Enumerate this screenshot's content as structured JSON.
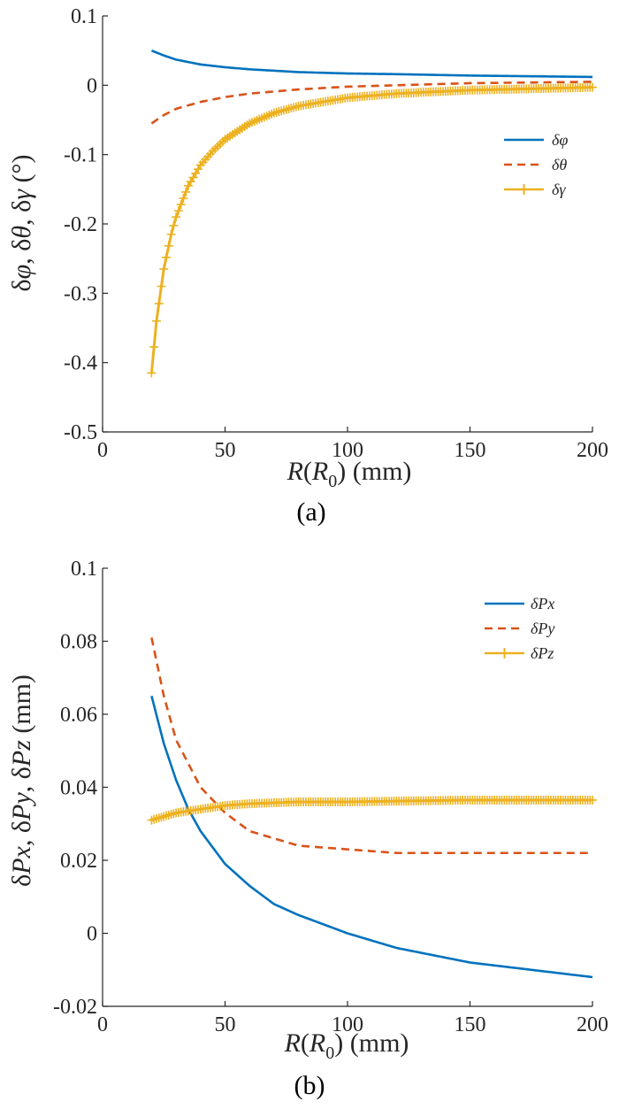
{
  "chart_data": [
    {
      "type": "line",
      "panel_label": "(a)",
      "ylabel": "δφ, δθ, δγ (°)",
      "xlabel": "R(R0) (mm)",
      "xlim": [
        0,
        200
      ],
      "ylim": [
        -0.5,
        0.1
      ],
      "x_ticks": [
        0,
        50,
        100,
        150,
        200
      ],
      "x_tick_labels": [
        "0",
        "50",
        "100",
        "150",
        "200"
      ],
      "y_ticks": [
        0.1,
        0,
        -0.1,
        -0.2,
        -0.3,
        -0.4,
        -0.5
      ],
      "y_tick_labels": [
        "0.1",
        "0",
        "-0.1",
        "-0.2",
        "-0.3",
        "-0.4",
        "-0.5"
      ],
      "grid": false,
      "legend_position": "right",
      "series": [
        {
          "name": "δφ",
          "color": "#0072BD",
          "style": "solid",
          "x": [
            20,
            25,
            30,
            40,
            50,
            60,
            80,
            100,
            120,
            150,
            200
          ],
          "y": [
            0.05,
            0.043,
            0.037,
            0.03,
            0.026,
            0.023,
            0.019,
            0.017,
            0.016,
            0.014,
            0.012
          ]
        },
        {
          "name": "δθ",
          "color": "#D95319",
          "style": "dashed",
          "x": [
            20,
            25,
            30,
            40,
            50,
            60,
            80,
            100,
            120,
            150,
            200
          ],
          "y": [
            -0.055,
            -0.043,
            -0.034,
            -0.024,
            -0.017,
            -0.012,
            -0.006,
            -0.002,
            0.0,
            0.003,
            0.005
          ]
        },
        {
          "name": "δγ",
          "color": "#EDB120",
          "style": "solid-marker",
          "x": [
            20,
            22,
            25,
            28,
            30,
            35,
            40,
            45,
            50,
            60,
            70,
            80,
            100,
            120,
            150,
            200
          ],
          "y": [
            -0.415,
            -0.34,
            -0.265,
            -0.215,
            -0.19,
            -0.145,
            -0.115,
            -0.095,
            -0.078,
            -0.055,
            -0.04,
            -0.03,
            -0.018,
            -0.012,
            -0.007,
            -0.003
          ]
        }
      ]
    },
    {
      "type": "line",
      "panel_label": "(b)",
      "ylabel": "δPx, δPy, δPz (mm)",
      "xlabel": "R(R0) (mm)",
      "xlim": [
        0,
        200
      ],
      "ylim": [
        -0.02,
        0.1
      ],
      "x_ticks": [
        0,
        50,
        100,
        150,
        200
      ],
      "x_tick_labels": [
        "0",
        "50",
        "100",
        "150",
        "200"
      ],
      "y_ticks": [
        0.1,
        0.08,
        0.06,
        0.04,
        0.02,
        0,
        -0.02
      ],
      "y_tick_labels": [
        "0.1",
        "0.08",
        "0.06",
        "0.04",
        "0.02",
        "0",
        "-0.02"
      ],
      "grid": false,
      "legend_position": "top-right",
      "series": [
        {
          "name": "δPx",
          "color": "#0072BD",
          "style": "solid",
          "x": [
            20,
            25,
            30,
            35,
            40,
            50,
            60,
            70,
            80,
            100,
            120,
            150,
            200
          ],
          "y": [
            0.065,
            0.052,
            0.042,
            0.034,
            0.028,
            0.019,
            0.013,
            0.008,
            0.005,
            0.0,
            -0.004,
            -0.008,
            -0.012
          ]
        },
        {
          "name": "δPy",
          "color": "#D95319",
          "style": "dashed",
          "x": [
            20,
            25,
            30,
            40,
            50,
            60,
            70,
            80,
            100,
            120,
            150,
            200
          ],
          "y": [
            0.081,
            0.065,
            0.053,
            0.04,
            0.033,
            0.028,
            0.026,
            0.024,
            0.023,
            0.022,
            0.022,
            0.022
          ]
        },
        {
          "name": "δPz",
          "color": "#EDB120",
          "style": "solid-marker",
          "x": [
            20,
            25,
            30,
            40,
            50,
            60,
            80,
            100,
            150,
            200
          ],
          "y": [
            0.031,
            0.032,
            0.033,
            0.034,
            0.035,
            0.0355,
            0.036,
            0.036,
            0.0365,
            0.0365
          ]
        }
      ]
    }
  ]
}
